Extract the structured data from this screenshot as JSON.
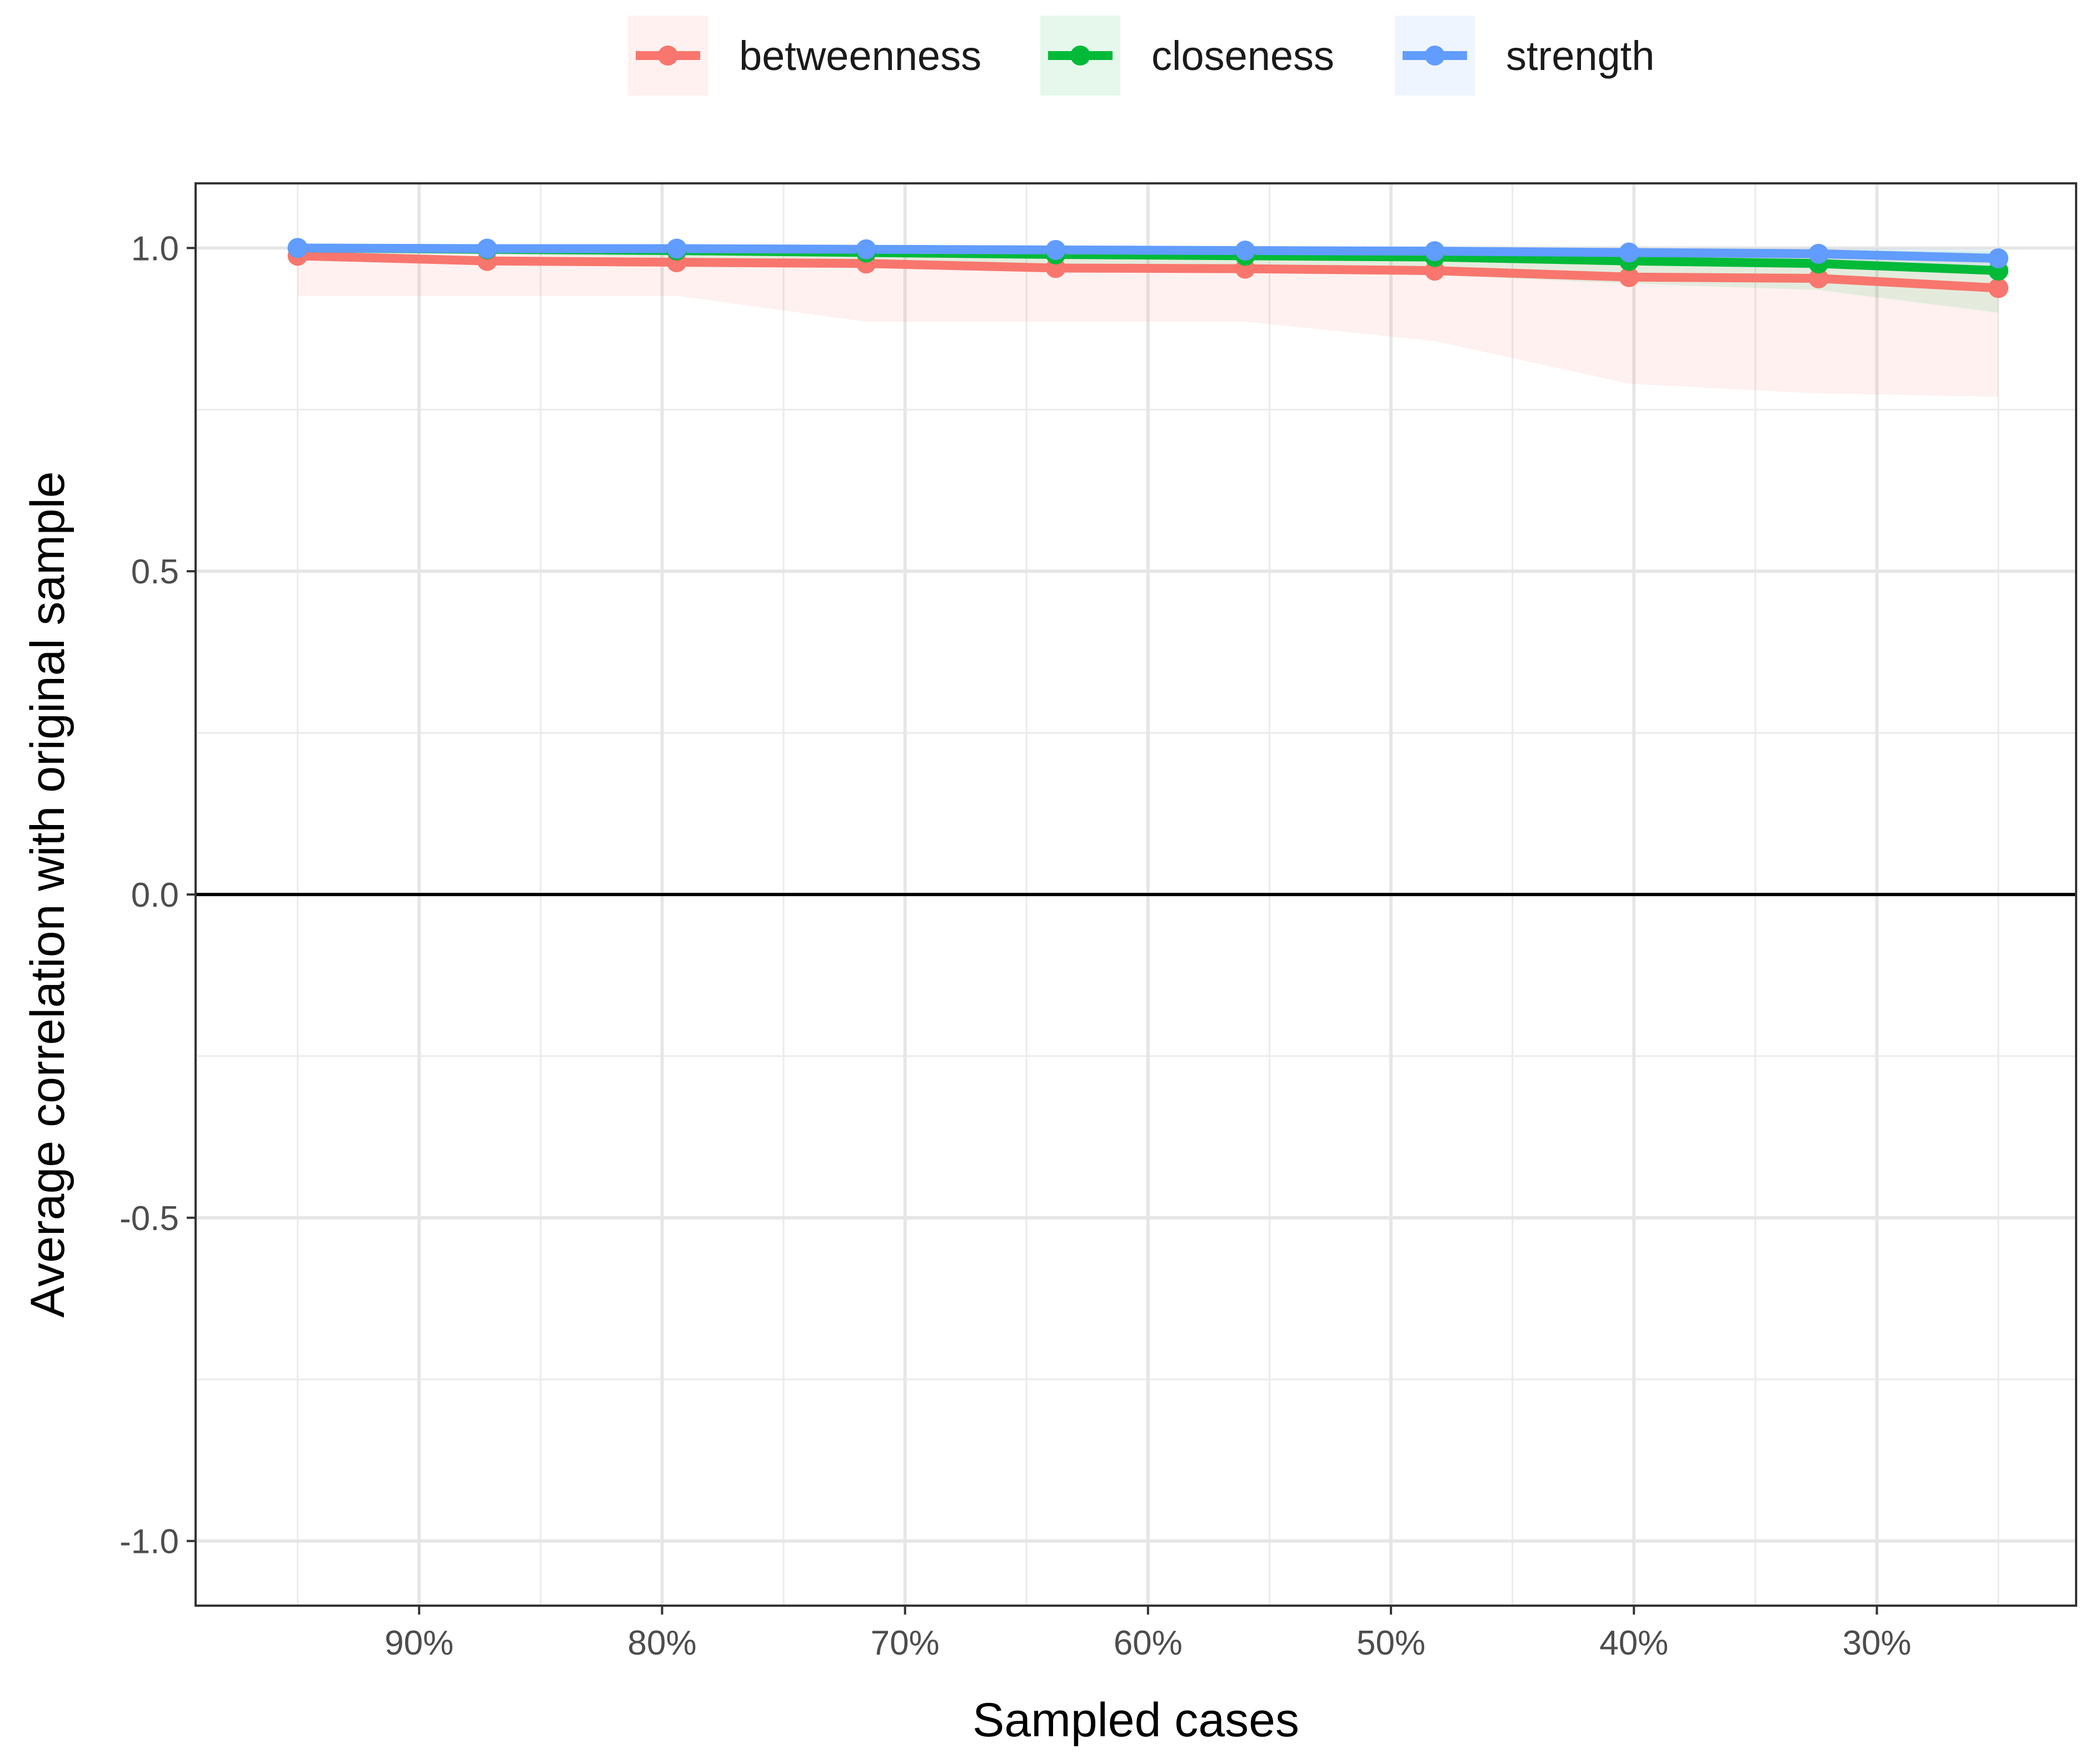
{
  "chart_data": {
    "type": "line",
    "title": "",
    "xlabel": "Sampled cases",
    "ylabel": "Average correlation with original sample",
    "x_reversed": true,
    "xlim": [
      0.992,
      0.218
    ],
    "ylim": [
      -1.1,
      1.1
    ],
    "x_ticks": [
      0.9,
      0.8,
      0.7,
      0.6,
      0.5,
      0.4,
      0.3
    ],
    "x_tick_labels": [
      "90%",
      "80%",
      "70%",
      "60%",
      "50%",
      "40%",
      "30%"
    ],
    "y_ticks": [
      -1.0,
      -0.5,
      0.0,
      0.5,
      1.0
    ],
    "y_tick_labels": [
      "-1.0",
      "-0.5",
      "0.0",
      "0.5",
      "1.0"
    ],
    "grid": true,
    "reference_line_y": 0.0,
    "legend_position": "top",
    "x": [
      0.95,
      0.872,
      0.794,
      0.716,
      0.638,
      0.56,
      0.482,
      0.402,
      0.324,
      0.25
    ],
    "series": [
      {
        "name": "betweenness",
        "color": "#F8766D",
        "values": [
          0.988,
          0.98,
          0.978,
          0.976,
          0.969,
          0.968,
          0.965,
          0.955,
          0.953,
          0.938
        ],
        "band_lower": [
          0.926,
          0.926,
          0.926,
          0.886,
          0.886,
          0.886,
          0.856,
          0.79,
          0.775,
          0.77
        ],
        "band_upper": [
          1.0,
          1.0,
          1.0,
          1.0,
          1.0,
          1.0,
          1.0,
          0.995,
          0.99,
          0.985
        ]
      },
      {
        "name": "closeness",
        "color": "#00BA38",
        "values": [
          1.0,
          0.998,
          0.996,
          0.993,
          0.99,
          0.988,
          0.986,
          0.98,
          0.976,
          0.965
        ],
        "band_lower": [
          0.995,
          0.99,
          0.985,
          0.978,
          0.972,
          0.965,
          0.958,
          0.945,
          0.935,
          0.9
        ],
        "band_upper": [
          1.0,
          1.0,
          1.0,
          1.0,
          1.0,
          1.0,
          1.0,
          1.0,
          0.998,
          0.995
        ]
      },
      {
        "name": "strength",
        "color": "#619CFF",
        "values": [
          1.0,
          0.999,
          0.999,
          0.998,
          0.997,
          0.996,
          0.995,
          0.993,
          0.991,
          0.984
        ],
        "band_lower": [
          0.998,
          0.997,
          0.996,
          0.994,
          0.993,
          0.991,
          0.989,
          0.985,
          0.982,
          0.972
        ],
        "band_upper": [
          1.0,
          1.0,
          1.0,
          1.0,
          1.0,
          1.0,
          1.0,
          1.0,
          1.0,
          0.998
        ]
      }
    ]
  }
}
